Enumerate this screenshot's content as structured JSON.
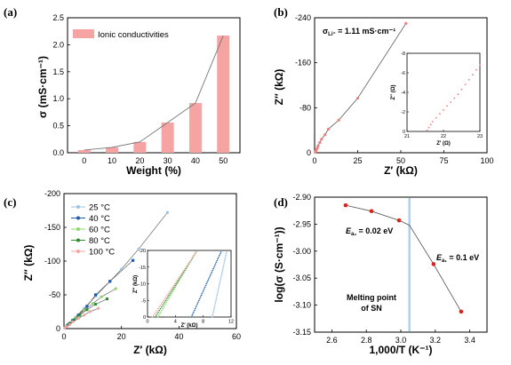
{
  "chart_data": [
    {
      "panel": "(a)",
      "type": "bar",
      "xlabel": "Weight  (%)",
      "ylabel": "σ (mS·cm⁻¹)",
      "categories": [
        "0",
        "10",
        "20",
        "30",
        "40",
        "50"
      ],
      "series": [
        {
          "name": "Ionic conductivities",
          "values": [
            0.05,
            0.1,
            0.2,
            0.56,
            0.92,
            2.17
          ],
          "color": "#f5a3a3"
        }
      ],
      "trend_line": [
        0.05,
        0.1,
        0.2,
        0.56,
        0.92,
        2.17
      ],
      "ylim": [
        0,
        2.5
      ],
      "yticks": [
        "0.0",
        "0.5",
        "1.0",
        "1.5",
        "2.0",
        "2.5"
      ],
      "legend": "top-left"
    },
    {
      "panel": "(b)",
      "type": "scatter",
      "xlabel": "Z′ (kΩ)",
      "ylabel": "Z″ (kΩ)",
      "annotation": "σ",
      "annotation_sub": "Li⁺",
      "annotation_value": " = 1.11 mS·cm⁻¹",
      "xlim": [
        0,
        100
      ],
      "ylim": [
        0,
        -240
      ],
      "xticks": [
        "0",
        "25",
        "50",
        "75",
        "100"
      ],
      "yticks": [
        "0",
        "-80",
        "-160",
        "-240"
      ],
      "color": "#f08080",
      "x": [
        0.3,
        0.6,
        1.0,
        1.5,
        2.0,
        3.0,
        4.0,
        6.0,
        8.0,
        14.0,
        25.0,
        53.0
      ],
      "y": [
        -1,
        -3,
        -5,
        -8,
        -12,
        -18,
        -24,
        -32,
        -42,
        -58,
        -97,
        -230
      ],
      "inset": {
        "xlabel": "Z′ (Ω)",
        "ylabel": "Z″ (Ω)",
        "xlim": [
          21,
          23
        ],
        "ylim": [
          0,
          -8
        ],
        "xticks": [
          "21",
          "22",
          "23"
        ],
        "yticks": [
          "0",
          "-2",
          "-4",
          "-6",
          "-8"
        ],
        "x": [
          21.55,
          21.6,
          21.65,
          21.7,
          21.8,
          21.9,
          22.0,
          22.1,
          22.2,
          22.3,
          22.4,
          22.5,
          22.6,
          22.7,
          22.8,
          22.9,
          23.0
        ],
        "y": [
          -0.1,
          -0.4,
          -0.7,
          -1.0,
          -1.4,
          -1.8,
          -2.2,
          -2.6,
          -3.0,
          -3.4,
          -3.8,
          -4.3,
          -4.8,
          -5.3,
          -5.8,
          -6.3,
          -6.8
        ]
      }
    },
    {
      "panel": "(c)",
      "type": "scatter",
      "xlabel": "Z′ (kΩ)",
      "ylabel": "Z″ (kΩ)",
      "xlim": [
        0,
        60
      ],
      "ylim": [
        0,
        -200
      ],
      "xticks": [
        "0",
        "20",
        "40",
        "60"
      ],
      "yticks": [
        "0",
        "-50",
        "-100",
        "-150",
        "-200"
      ],
      "legend": "top-left",
      "series": [
        {
          "name": "25 °C",
          "color": "#9bc3e6",
          "x": [
            0.5,
            2,
            4,
            7,
            11,
            16,
            20,
            26,
            36
          ],
          "y": [
            -2,
            -8,
            -17,
            -30,
            -48,
            -70,
            -88,
            -118,
            -172
          ]
        },
        {
          "name": "40 °C",
          "color": "#1f5aa8",
          "x": [
            0.4,
            1.5,
            3,
            5,
            8,
            11,
            16,
            24
          ],
          "y": [
            -1,
            -6,
            -12,
            -20,
            -33,
            -50,
            -70,
            -101
          ]
        },
        {
          "name": "60 °C",
          "color": "#8fd66b",
          "x": [
            0.3,
            1,
            2.5,
            4,
            7,
            10,
            13,
            18
          ],
          "y": [
            -1,
            -4,
            -9,
            -16,
            -27,
            -37,
            -47,
            -59
          ]
        },
        {
          "name": "80 °C",
          "color": "#2e8b2e",
          "x": [
            0.3,
            1,
            2,
            3.5,
            5.5,
            8,
            11,
            15
          ],
          "y": [
            -1,
            -4,
            -8,
            -13,
            -20,
            -28,
            -36,
            -44
          ]
        },
        {
          "name": "100 °C",
          "color": "#f5a3a3",
          "x": [
            0.3,
            1,
            2,
            3,
            5,
            7,
            9,
            12
          ],
          "y": [
            -1,
            -3,
            -6,
            -10,
            -15,
            -20,
            -25,
            -30
          ]
        }
      ],
      "inset": {
        "xlabel": "Z′ (kΩ)",
        "ylabel": "Z″ (kΩ)",
        "xlim": [
          0,
          12
        ],
        "ylim": [
          0,
          -20
        ],
        "xticks": [
          "0",
          "4",
          "8",
          "12"
        ],
        "yticks": [
          "0",
          "-5",
          "-10",
          "-15",
          "-20"
        ]
      }
    },
    {
      "panel": "(d)",
      "type": "line",
      "xlabel": "1,000/T (K⁻¹)",
      "ylabel": "log(σ (S·cm⁻¹))",
      "xlim": [
        2.5,
        3.5
      ],
      "ylim": [
        -3.15,
        -2.9
      ],
      "xticks": [
        "2.6",
        "2.8",
        "3.0",
        "3.2",
        "3.4"
      ],
      "yticks": [
        "-2.90",
        "-2.95",
        "-3.00",
        "-3.05",
        "-3.10",
        "-3.15"
      ],
      "x": [
        2.68,
        2.83,
        2.99,
        3.19,
        3.35
      ],
      "y": [
        -2.915,
        -2.926,
        -2.943,
        -3.024,
        -3.112
      ],
      "trend_line": {
        "x": [
          2.68,
          2.83,
          2.99,
          3.05,
          3.19,
          3.35
        ],
        "y": [
          -2.915,
          -2.926,
          -2.943,
          -2.952,
          -3.024,
          -3.112
        ]
      },
      "vline": 3.05,
      "annotations": [
        {
          "E": "E",
          "sub": "a₂",
          "value": " = 0.02 eV"
        },
        {
          "E": "E",
          "sub": "a₁",
          "value": " = 0.1 eV"
        },
        {
          "line1": "Melting point",
          "line2": "of SN"
        }
      ]
    }
  ]
}
